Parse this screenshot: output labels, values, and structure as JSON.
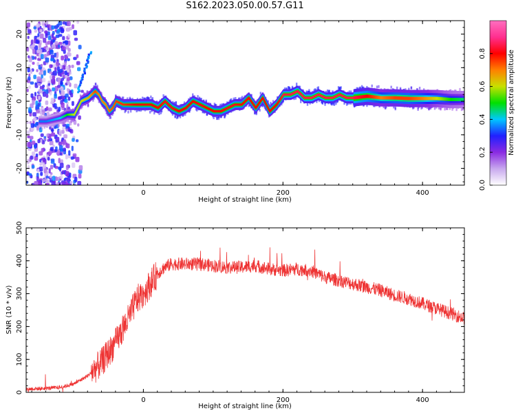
{
  "title": "S162.2023.050.00.57.G11",
  "chart_data": [
    {
      "type": "heatmap",
      "title": "S162.2023.050.00.57.G11",
      "xlabel": "Height of straight line (km)",
      "ylabel": "Frequency (Hz)",
      "xlim": [
        -168,
        460
      ],
      "ylim": [
        -25,
        24
      ],
      "x_ticks": [
        0,
        200,
        400
      ],
      "y_ticks": [
        -20,
        -10,
        0,
        10,
        20
      ],
      "colorbar": {
        "label": "Normalized spectral amplitude",
        "range": [
          0,
          1
        ],
        "ticks": [
          0.0,
          0.2,
          0.4,
          0.6,
          0.8
        ],
        "tick_labels": [
          "0.0",
          "0.2",
          "0.4",
          "0.6",
          "0.8"
        ],
        "colormap": [
          "#ffffff",
          "#c8a8ee",
          "#8a2be2",
          "#2020ff",
          "#00c8ff",
          "#00e000",
          "#c8e000",
          "#ff8000",
          "#ff0000",
          "#ff2f8f",
          "#ff6fbf"
        ]
      },
      "ridge": {
        "height_km": [
          -140,
          -120,
          -110,
          -100,
          -90,
          -80,
          -75,
          -70,
          -65,
          -60,
          -55,
          -50,
          -45,
          -40,
          -30,
          -20,
          -10,
          0,
          10,
          20,
          30,
          40,
          50,
          60,
          70,
          80,
          90,
          100,
          110,
          120,
          130,
          140,
          150,
          160,
          170,
          180,
          190,
          200,
          210,
          220,
          230,
          240,
          250,
          260,
          270,
          280,
          290,
          300,
          320,
          340,
          360,
          380,
          400,
          420,
          440,
          460
        ],
        "frequency_hz": [
          -6,
          -5,
          -4,
          -4,
          0,
          1,
          2,
          3,
          2,
          0,
          -1,
          -3,
          -2,
          0,
          -1,
          -1,
          -1,
          -1,
          -1,
          -2,
          0,
          -2,
          -3,
          -2,
          0,
          -1,
          -2,
          -3,
          -3,
          -2,
          -1,
          -1,
          1,
          -2,
          1,
          -3,
          -1,
          2,
          2,
          3,
          1,
          1,
          2,
          1,
          1,
          2,
          1,
          1,
          1.5,
          1,
          1,
          0.8,
          0.8,
          0.8,
          0.5,
          0.5
        ],
        "amplitude": [
          0.35,
          0.4,
          0.5,
          0.6,
          0.6,
          0.65,
          0.7,
          0.75,
          0.7,
          0.7,
          0.7,
          0.72,
          0.74,
          0.75,
          0.76,
          0.78,
          0.8,
          0.8,
          0.8,
          0.8,
          0.82,
          0.82,
          0.8,
          0.8,
          0.8,
          0.82,
          0.8,
          0.8,
          0.8,
          0.82,
          0.82,
          0.8,
          0.8,
          0.8,
          0.8,
          0.8,
          0.8,
          0.85,
          0.85,
          0.85,
          0.85,
          0.85,
          0.85,
          0.85,
          0.85,
          0.85,
          0.85,
          0.85,
          0.8,
          0.7,
          0.75,
          0.75,
          0.7,
          0.6,
          0.5,
          0.45
        ]
      }
    },
    {
      "type": "line",
      "xlabel": "Height of straight line (km)",
      "ylabel": "SNR (10 * v/v)",
      "xlim": [
        -168,
        460
      ],
      "ylim": [
        0,
        500
      ],
      "x_ticks": [
        0,
        200,
        400
      ],
      "y_ticks": [
        0,
        100,
        200,
        300,
        400,
        500
      ],
      "color": "#ee3333",
      "series": [
        {
          "x": [
            -168,
            -140,
            -120,
            -100,
            -80,
            -60,
            -40,
            -20,
            -10,
            0,
            10,
            20,
            30,
            40,
            60,
            80,
            100,
            120,
            140,
            160,
            180,
            200,
            220,
            240,
            260,
            280,
            300,
            320,
            340,
            360,
            380,
            400,
            420,
            440,
            460
          ],
          "y": [
            10,
            12,
            15,
            25,
            50,
            90,
            150,
            230,
            280,
            300,
            330,
            360,
            380,
            390,
            390,
            390,
            385,
            380,
            380,
            385,
            375,
            370,
            375,
            370,
            350,
            340,
            330,
            320,
            310,
            295,
            285,
            270,
            255,
            240,
            225
          ]
        }
      ]
    }
  ]
}
